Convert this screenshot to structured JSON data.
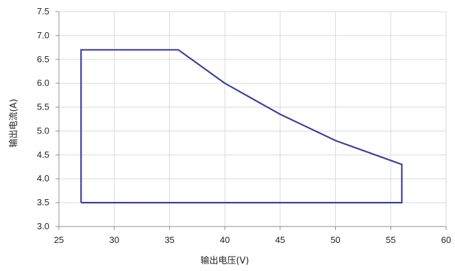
{
  "chart_data": {
    "type": "line",
    "title": "",
    "xlabel": "输出电压(V)",
    "ylabel": "输出电流(A)",
    "xlim": [
      25,
      60
    ],
    "ylim": [
      3.0,
      7.5
    ],
    "x_ticks": [
      25,
      30,
      35,
      40,
      45,
      50,
      55,
      60
    ],
    "x_tick_labels": [
      "25",
      "30",
      "35",
      "40",
      "45",
      "50",
      "55",
      "60"
    ],
    "y_ticks": [
      3.0,
      3.5,
      4.0,
      4.5,
      5.0,
      5.5,
      6.0,
      6.5,
      7.0,
      7.5
    ],
    "y_tick_labels": [
      "3.0",
      "3.5",
      "4.0",
      "4.5",
      "5.0",
      "5.5",
      "6.0",
      "6.5",
      "7.0",
      "7.5"
    ],
    "grid": true,
    "series": [
      {
        "color": "#3b3e9a",
        "x": [
          27,
          27,
          35.8,
          40,
          45,
          50,
          56,
          56,
          27
        ],
        "y": [
          3.5,
          6.7,
          6.7,
          6.0,
          5.35,
          4.8,
          4.3,
          3.5,
          3.5
        ]
      }
    ]
  }
}
